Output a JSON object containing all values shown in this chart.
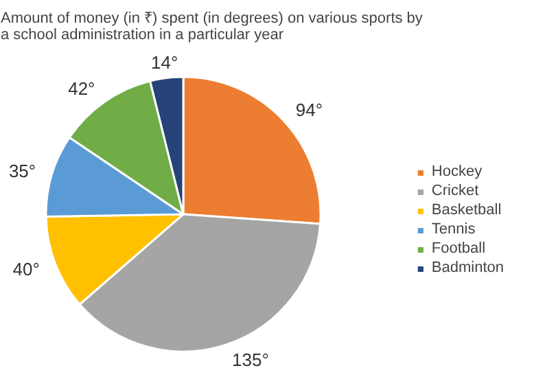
{
  "chart_data": {
    "type": "pie",
    "title": "Amount of money (in ₹) spent (in degrees) on various sports by a school administration in a particular year",
    "categories": [
      "Hockey",
      "Cricket",
      "Basketball",
      "Tennis",
      "Football",
      "Badminton"
    ],
    "values": [
      94,
      135,
      40,
      35,
      42,
      14
    ],
    "colors": [
      "#ed7d31",
      "#a5a5a5",
      "#ffc000",
      "#5b9bd5",
      "#70ad47",
      "#264478"
    ],
    "value_labels": [
      "94°",
      "135°",
      "40°",
      "35°",
      "42°",
      "14°"
    ],
    "legend": "right"
  }
}
